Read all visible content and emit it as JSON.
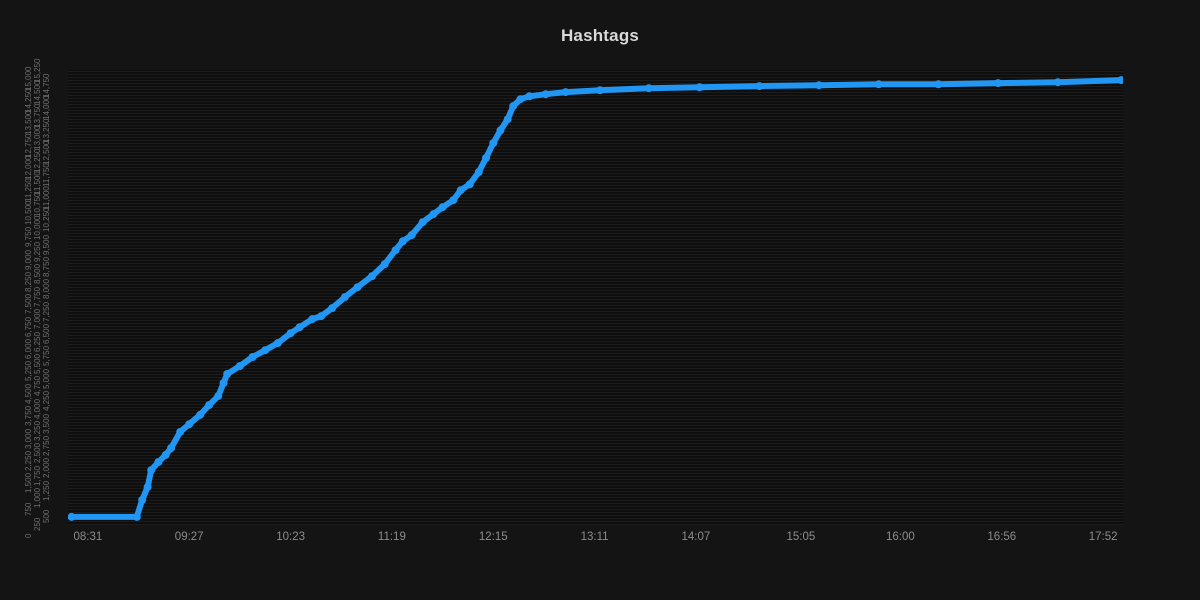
{
  "title": "Hashtags",
  "colors": {
    "background": "#141414",
    "plot_background": "#0e0e0e",
    "gridline": "#1c1c1c",
    "line": "#2196f3",
    "title_text": "#d9d9d9",
    "x_axis_text": "#8c8c8c",
    "y_axis_text": "#6e6e6e"
  },
  "chart_data": {
    "type": "line",
    "title": "Hashtags",
    "legend": false,
    "grid": true,
    "x_ticks": [
      "08:31",
      "09:27",
      "10:23",
      "11:19",
      "12:15",
      "13:11",
      "14:07",
      "15:05",
      "16:00",
      "16:56",
      "17:52"
    ],
    "x_domain": [
      "08:20",
      "18:03"
    ],
    "y_axis": {
      "min": 0,
      "max": 15250,
      "tick_step": 250,
      "labels_overlapping": true,
      "label_rotation_deg": 90
    },
    "points": [
      [
        "08:22",
        270
      ],
      [
        "08:58",
        270
      ],
      [
        "09:01",
        840
      ],
      [
        "09:04",
        1270
      ],
      [
        "09:06",
        1840
      ],
      [
        "09:10",
        2110
      ],
      [
        "09:14",
        2350
      ],
      [
        "09:17",
        2580
      ],
      [
        "09:22",
        3120
      ],
      [
        "09:27",
        3380
      ],
      [
        "09:33",
        3690
      ],
      [
        "09:38",
        4020
      ],
      [
        "09:43",
        4320
      ],
      [
        "09:46",
        4760
      ],
      [
        "09:48",
        5060
      ],
      [
        "09:55",
        5330
      ],
      [
        "10:02",
        5630
      ],
      [
        "10:09",
        5860
      ],
      [
        "10:16",
        6100
      ],
      [
        "10:23",
        6430
      ],
      [
        "10:28",
        6630
      ],
      [
        "10:35",
        6900
      ],
      [
        "10:40",
        7000
      ],
      [
        "10:46",
        7270
      ],
      [
        "10:53",
        7640
      ],
      [
        "11:00",
        7970
      ],
      [
        "11:08",
        8340
      ],
      [
        "11:15",
        8740
      ],
      [
        "11:21",
        9210
      ],
      [
        "11:25",
        9510
      ],
      [
        "11:30",
        9720
      ],
      [
        "11:36",
        10150
      ],
      [
        "11:42",
        10420
      ],
      [
        "11:47",
        10650
      ],
      [
        "11:53",
        10890
      ],
      [
        "11:57",
        11220
      ],
      [
        "12:02",
        11420
      ],
      [
        "12:07",
        11830
      ],
      [
        "12:11",
        12300
      ],
      [
        "12:15",
        12800
      ],
      [
        "12:19",
        13230
      ],
      [
        "12:23",
        13600
      ],
      [
        "12:26",
        14040
      ],
      [
        "12:30",
        14270
      ],
      [
        "12:35",
        14370
      ],
      [
        "12:44",
        14440
      ],
      [
        "12:55",
        14510
      ],
      [
        "13:14",
        14570
      ],
      [
        "13:41",
        14640
      ],
      [
        "14:09",
        14670
      ],
      [
        "14:42",
        14710
      ],
      [
        "15:15",
        14740
      ],
      [
        "15:48",
        14770
      ],
      [
        "16:21",
        14770
      ],
      [
        "16:54",
        14810
      ],
      [
        "17:27",
        14840
      ],
      [
        "18:02",
        14910
      ]
    ]
  }
}
